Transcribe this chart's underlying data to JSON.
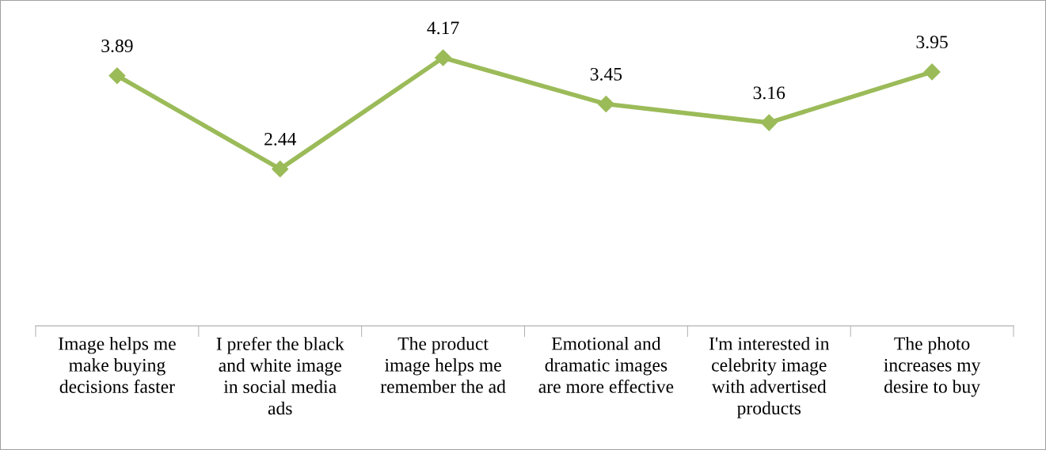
{
  "chart_data": {
    "type": "line",
    "categories": [
      "Image helps me\nmake buying\ndecisions faster",
      "I prefer the black\nand white image\nin social media\nads",
      "The product\nimage helps me\nremember the ad",
      "Emotional and\ndramatic images\nare more effective",
      "I'm interested in\ncelebrity image\nwith advertised\nproducts",
      "The photo\nincreases my\ndesire to buy"
    ],
    "series": [
      {
        "color": "#9bbb59",
        "values": [
          3.89,
          2.44,
          4.17,
          3.45,
          3.16,
          3.95
        ]
      }
    ],
    "data_labels": true,
    "marker": "diamond",
    "line_style": "solid",
    "grid": false,
    "legend": false
  }
}
